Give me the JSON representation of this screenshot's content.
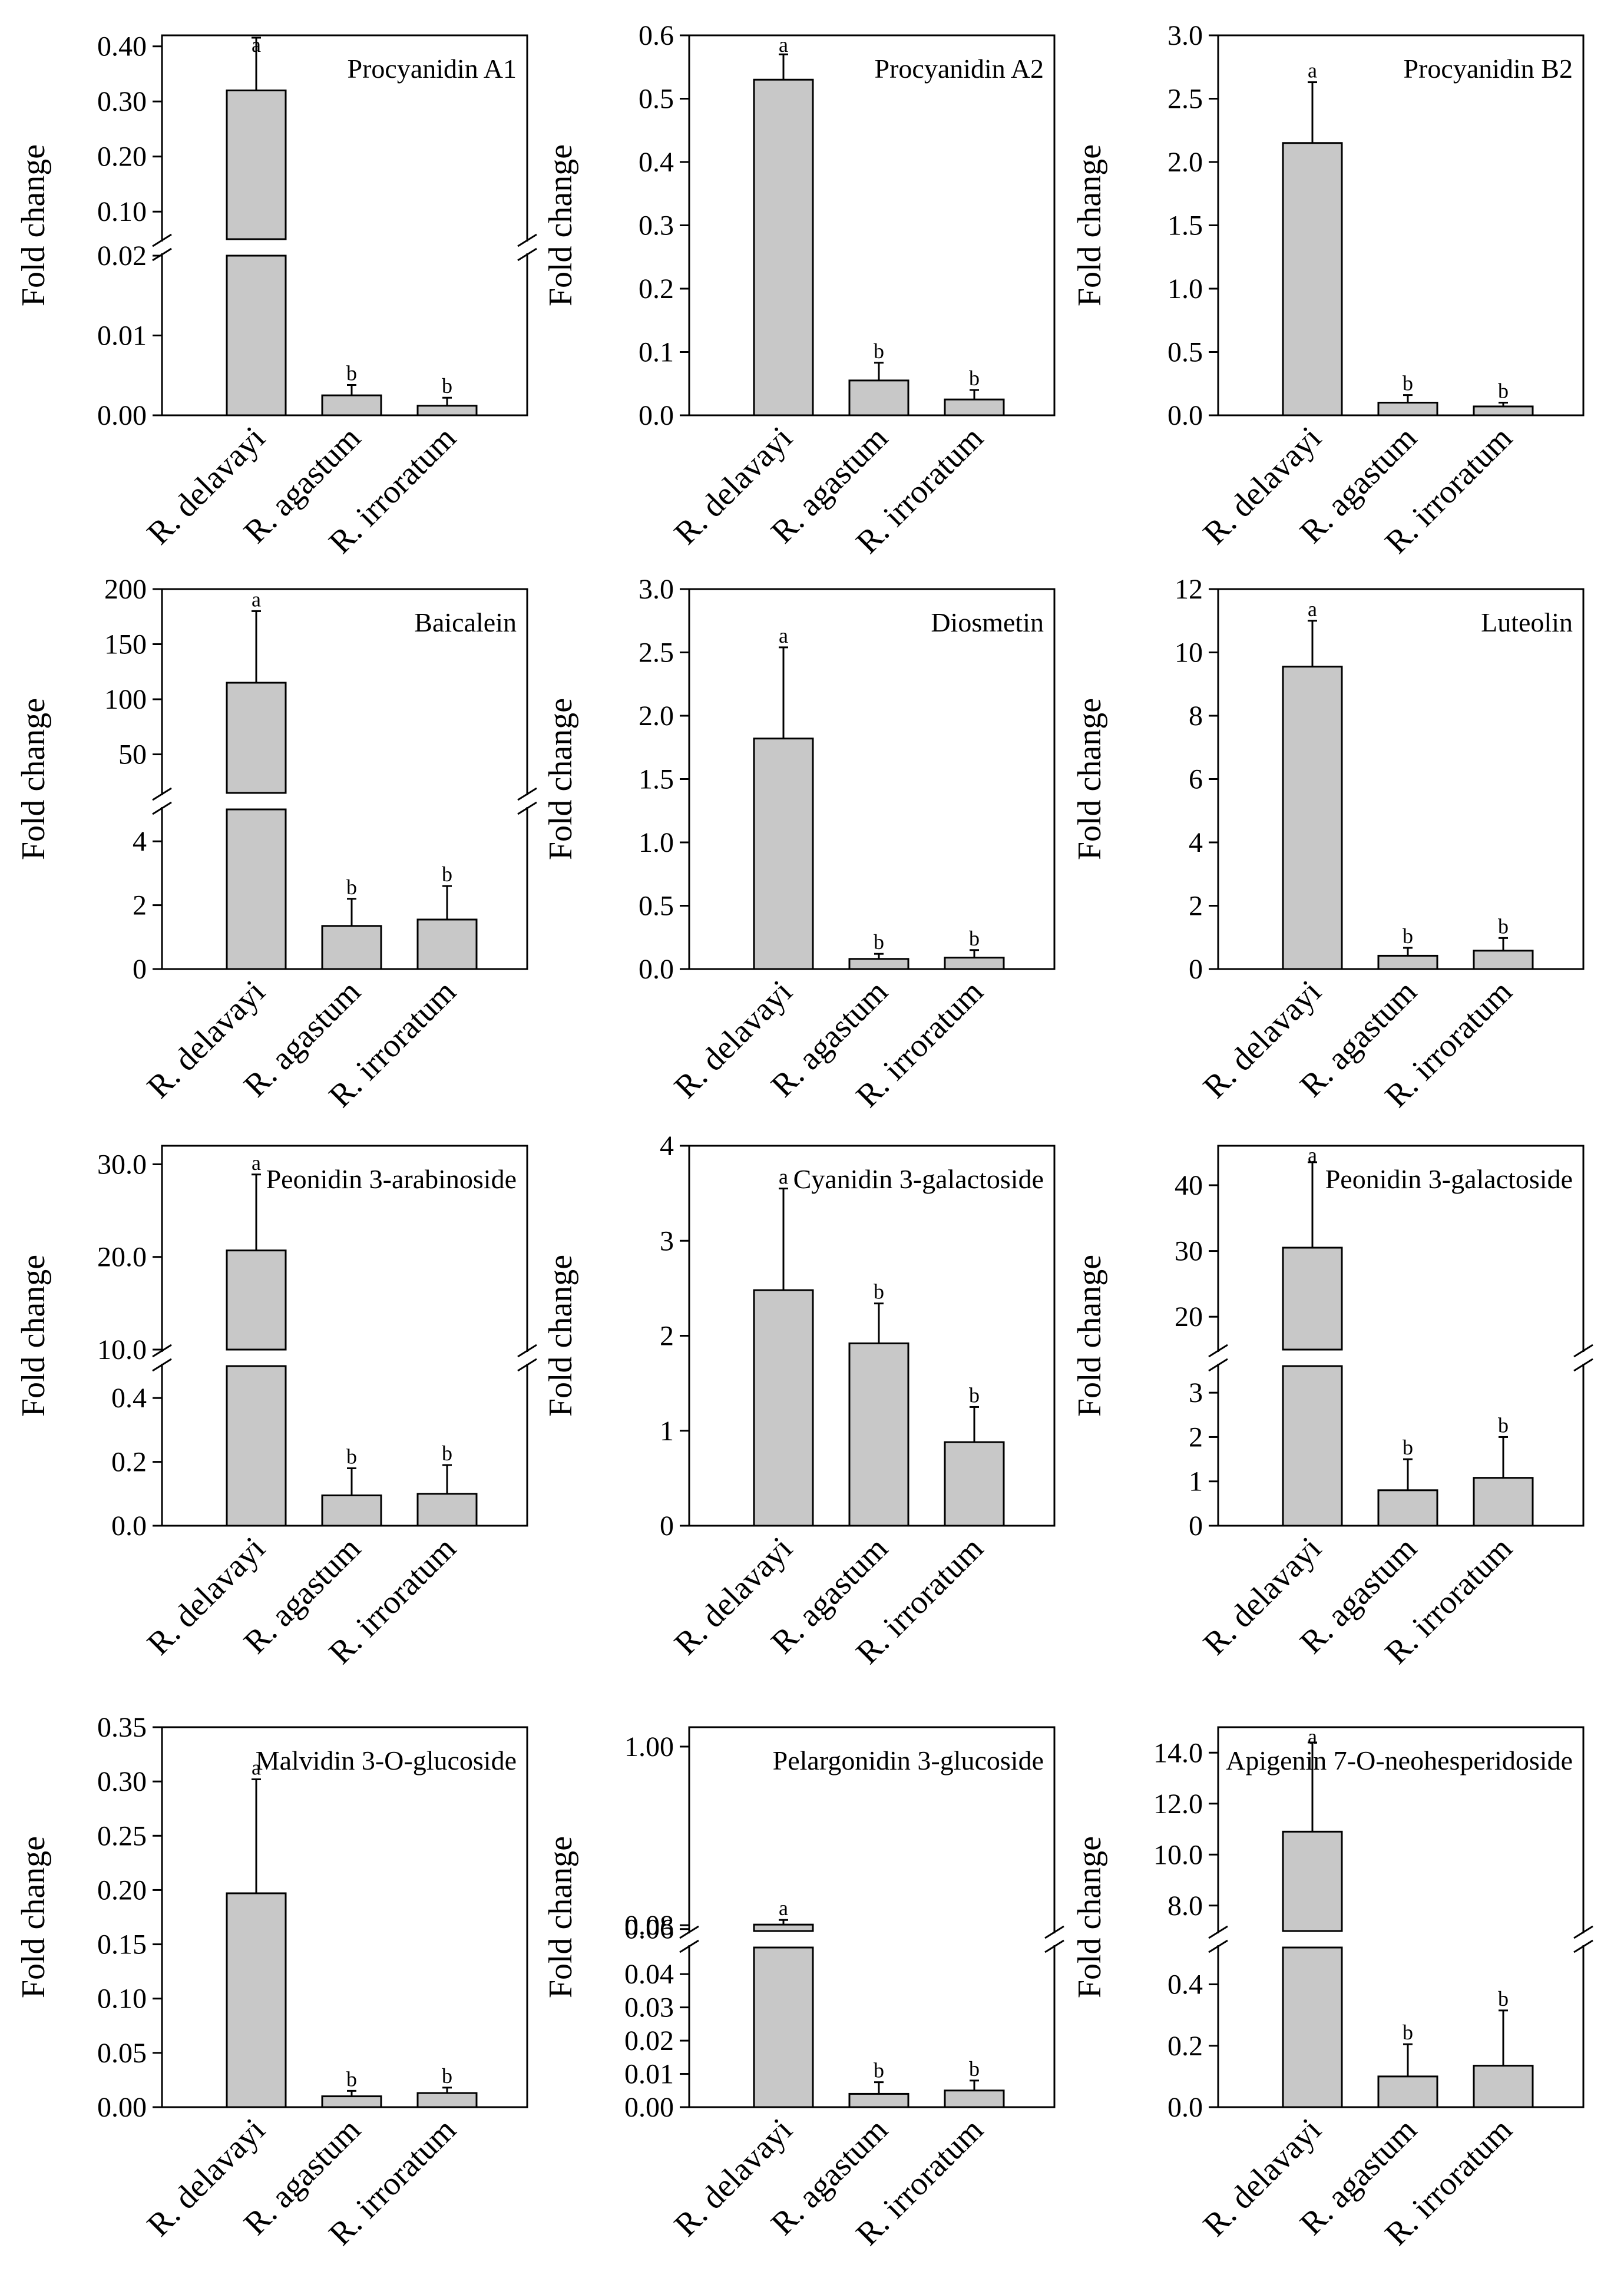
{
  "ylabel": "Fold change",
  "colors": {
    "bar": "#c8c8c8",
    "stroke": "#000000",
    "background": "#ffffff"
  },
  "chart_data": [
    {
      "type": "bar",
      "title": "Procyanidin A1",
      "categories": [
        "R. delavayi",
        "R. agastum",
        "R. irroratum"
      ],
      "values": [
        0.32,
        0.0025,
        0.0012
      ],
      "errors": [
        0.11,
        0.0013,
        0.001
      ],
      "letters": [
        "a",
        "b",
        "b"
      ],
      "ylabel": "Fold change",
      "broken_axis": true,
      "lower": {
        "ylim": [
          0,
          0.02
        ],
        "ticks": [
          "0.00",
          "0.01",
          "0.02"
        ]
      },
      "upper": {
        "ylim": [
          0.05,
          0.42
        ],
        "ticks": [
          "0.10",
          "0.20",
          "0.30",
          "0.40"
        ]
      }
    },
    {
      "type": "bar",
      "title": "Procyanidin A2",
      "categories": [
        "R. delavayi",
        "R. agastum",
        "R. irroratum"
      ],
      "values": [
        0.53,
        0.055,
        0.025
      ],
      "errors": [
        0.04,
        0.028,
        0.015
      ],
      "letters": [
        "a",
        "b",
        "b"
      ],
      "ylabel": "Fold change",
      "ylim": [
        0,
        0.6
      ],
      "ticks": [
        "0.0",
        "0.1",
        "0.2",
        "0.3",
        "0.4",
        "0.5",
        "0.6"
      ]
    },
    {
      "type": "bar",
      "title": "Procyanidin B2",
      "categories": [
        "R. delavayi",
        "R. agastum",
        "R. irroratum"
      ],
      "values": [
        2.15,
        0.1,
        0.07
      ],
      "errors": [
        0.48,
        0.06,
        0.03
      ],
      "letters": [
        "a",
        "b",
        "b"
      ],
      "ylabel": "Fold change",
      "ylim": [
        0,
        3.0
      ],
      "ticks": [
        "0.0",
        "0.5",
        "1.0",
        "1.5",
        "2.0",
        "2.5",
        "3.0"
      ]
    },
    {
      "type": "bar",
      "title": "Baicalein",
      "categories": [
        "R. delavayi",
        "R. agastum",
        "R. irroratum"
      ],
      "values": [
        115,
        1.35,
        1.55
      ],
      "errors": [
        65,
        0.85,
        1.05
      ],
      "letters": [
        "a",
        "b",
        "b"
      ],
      "ylabel": "Fold change",
      "broken_axis": true,
      "lower": {
        "ylim": [
          0,
          5
        ],
        "ticks": [
          "0",
          "2",
          "4"
        ]
      },
      "upper": {
        "ylim": [
          15,
          200
        ],
        "ticks": [
          "50",
          "100",
          "150",
          "200"
        ]
      }
    },
    {
      "type": "bar",
      "title": "Diosmetin",
      "categories": [
        "R. delavayi",
        "R. agastum",
        "R. irroratum"
      ],
      "values": [
        1.82,
        0.08,
        0.09
      ],
      "errors": [
        0.72,
        0.04,
        0.06
      ],
      "letters": [
        "a",
        "b",
        "b"
      ],
      "ylabel": "Fold change",
      "ylim": [
        0,
        3.0
      ],
      "ticks": [
        "0.0",
        "0.5",
        "1.0",
        "1.5",
        "2.0",
        "2.5",
        "3.0"
      ]
    },
    {
      "type": "bar",
      "title": "Luteolin",
      "categories": [
        "R. delavayi",
        "R. agastum",
        "R. irroratum"
      ],
      "values": [
        9.55,
        0.42,
        0.58
      ],
      "errors": [
        1.45,
        0.25,
        0.4
      ],
      "letters": [
        "a",
        "b",
        "b"
      ],
      "ylabel": "Fold change",
      "ylim": [
        0,
        12
      ],
      "ticks": [
        "0",
        "2",
        "4",
        "6",
        "8",
        "10",
        "12"
      ]
    },
    {
      "type": "bar",
      "title": "Peonidin 3-arabinoside",
      "categories": [
        "R. delavayi",
        "R. agastum",
        "R. irroratum"
      ],
      "values": [
        20.7,
        0.095,
        0.1
      ],
      "errors": [
        8.2,
        0.085,
        0.09
      ],
      "letters": [
        "a",
        "b",
        "b"
      ],
      "ylabel": "Fold change",
      "broken_axis": true,
      "lower": {
        "ylim": [
          0,
          0.5
        ],
        "ticks": [
          "0.0",
          "0.2",
          "0.4"
        ]
      },
      "upper": {
        "ylim": [
          10,
          32
        ],
        "ticks": [
          "10.0",
          "20.0",
          "30.0"
        ]
      }
    },
    {
      "type": "bar",
      "title": "Cyanidin 3-galactoside",
      "categories": [
        "R. delavayi",
        "R. agastum",
        "R. irroratum"
      ],
      "values": [
        2.48,
        1.92,
        0.88
      ],
      "errors": [
        1.07,
        0.42,
        0.37
      ],
      "letters": [
        "a",
        "b",
        "b"
      ],
      "ylabel": "Fold change",
      "ylim": [
        0,
        4
      ],
      "ticks": [
        "0",
        "1",
        "2",
        "3",
        "4"
      ]
    },
    {
      "type": "bar",
      "title": "Peonidin 3-galactoside",
      "categories": [
        "R. delavayi",
        "R. agastum",
        "R. irroratum"
      ],
      "values": [
        30.5,
        0.8,
        1.08
      ],
      "errors": [
        13,
        0.7,
        0.92
      ],
      "letters": [
        "a",
        "b",
        "b"
      ],
      "ylabel": "Fold change",
      "broken_axis": true,
      "lower": {
        "ylim": [
          0,
          3.6
        ],
        "ticks": [
          "0",
          "1",
          "2",
          "3"
        ]
      },
      "upper": {
        "ylim": [
          15,
          46
        ],
        "ticks": [
          "20",
          "30",
          "40"
        ]
      }
    },
    {
      "type": "bar",
      "title": "Malvidin 3-O-glucoside",
      "categories": [
        "R. delavayi",
        "R. agastum",
        "R. irroratum"
      ],
      "values": [
        0.197,
        0.01,
        0.013
      ],
      "errors": [
        0.105,
        0.005,
        0.005
      ],
      "letters": [
        "a",
        "b",
        "b"
      ],
      "ylabel": "Fold change",
      "ylim": [
        0,
        0.35
      ],
      "ticks": [
        "0.00",
        "0.05",
        "0.10",
        "0.15",
        "0.20",
        "0.25",
        "0.30",
        "0.35"
      ]
    },
    {
      "type": "bar",
      "title": "Pelargonidin 3-glucoside",
      "categories": [
        "R. delavayi",
        "R. agastum",
        "R. irroratum"
      ],
      "values": [
        0.083,
        0.004,
        0.005
      ],
      "errors": [
        0.024,
        0.0035,
        0.003
      ],
      "letters": [
        "a",
        "b",
        "b"
      ],
      "ylabel": "Fold change",
      "broken_axis": true,
      "lower": {
        "ylim": [
          0,
          0.048
        ],
        "ticks": [
          "0.00",
          "0.01",
          "0.02",
          "0.03",
          "0.04"
        ]
      },
      "upper": {
        "ylim": [
          0.05,
          1.1
        ],
        "ticks": [
          "0.06",
          "0.08",
          "1.00"
        ],
        "tick_values": [
          0.06,
          0.08,
          1.0
        ]
      }
    },
    {
      "type": "bar",
      "title": "Apigenin 7-O-neohesperidoside",
      "categories": [
        "R. delavayi",
        "R. agastum",
        "R. irroratum"
      ],
      "values": [
        10.9,
        0.1,
        0.135
      ],
      "errors": [
        3.5,
        0.105,
        0.18
      ],
      "letters": [
        "a",
        "b",
        "b"
      ],
      "ylabel": "Fold change",
      "broken_axis": true,
      "lower": {
        "ylim": [
          0,
          0.52
        ],
        "ticks": [
          "0.0",
          "0.2",
          "0.4"
        ]
      },
      "upper": {
        "ylim": [
          7,
          15
        ],
        "ticks": [
          "8.0",
          "10.0",
          "12.0",
          "14.0"
        ]
      }
    }
  ]
}
